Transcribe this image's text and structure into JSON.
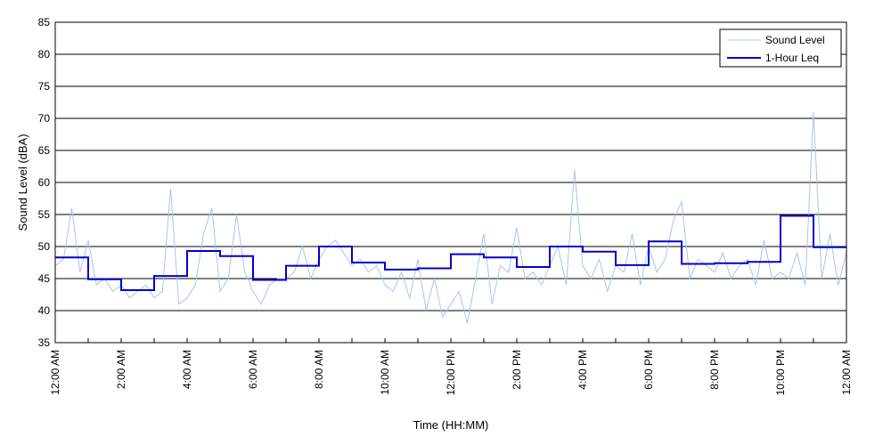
{
  "chart_data": {
    "type": "line",
    "title": "",
    "xlabel": "Time (HH:MM)",
    "ylabel": "Sound Level (dBA)",
    "xlim": [
      0,
      24
    ],
    "ylim": [
      35,
      85
    ],
    "y_ticks": [
      35,
      40,
      45,
      50,
      55,
      60,
      65,
      70,
      75,
      80,
      85
    ],
    "x_ticks": [
      0,
      2,
      4,
      6,
      8,
      10,
      12,
      14,
      16,
      18,
      20,
      22,
      24
    ],
    "x_tick_labels": [
      "12:00 AM",
      "2:00 AM",
      "4:00 AM",
      "6:00 AM",
      "8:00 AM",
      "10:00 AM",
      "12:00 PM",
      "2:00 PM",
      "4:00 PM",
      "6:00 PM",
      "8:00 PM",
      "10:00 PM",
      "12:00 AM"
    ],
    "grid": "horizontal",
    "legend_position": "top-right",
    "series": [
      {
        "name": "Sound Level",
        "color": "#a8c4f2",
        "style": "thin line",
        "x": [
          0.0,
          0.25,
          0.5,
          0.75,
          1.0,
          1.25,
          1.5,
          1.75,
          2.0,
          2.25,
          2.5,
          2.75,
          3.0,
          3.25,
          3.5,
          3.75,
          4.0,
          4.25,
          4.5,
          4.75,
          5.0,
          5.25,
          5.5,
          5.75,
          6.0,
          6.25,
          6.5,
          6.75,
          7.0,
          7.25,
          7.5,
          7.75,
          8.0,
          8.25,
          8.5,
          8.75,
          9.0,
          9.25,
          9.5,
          9.75,
          10.0,
          10.25,
          10.5,
          10.75,
          11.0,
          11.25,
          11.5,
          11.75,
          12.0,
          12.25,
          12.5,
          12.75,
          13.0,
          13.25,
          13.5,
          13.75,
          14.0,
          14.25,
          14.5,
          14.75,
          15.0,
          15.25,
          15.5,
          15.75,
          16.0,
          16.25,
          16.5,
          16.75,
          17.0,
          17.25,
          17.5,
          17.75,
          18.0,
          18.25,
          18.5,
          18.75,
          19.0,
          19.25,
          19.5,
          19.75,
          20.0,
          20.25,
          20.5,
          20.75,
          21.0,
          21.25,
          21.5,
          21.75,
          22.0,
          22.25,
          22.5,
          22.75,
          23.0,
          23.25,
          23.5,
          23.75,
          24.0
        ],
        "values": [
          47,
          48,
          56,
          46,
          51,
          44,
          45,
          43,
          44,
          42,
          43,
          44,
          42,
          43,
          59,
          41,
          42,
          44,
          52,
          56,
          43,
          45,
          55,
          46,
          43,
          41,
          44,
          45,
          45,
          46,
          50,
          45,
          48,
          50,
          51,
          49,
          47,
          48,
          46,
          47,
          44,
          43,
          46,
          42,
          48,
          40,
          45,
          39,
          41,
          43,
          38,
          45,
          52,
          41,
          47,
          46,
          53,
          45,
          46,
          44,
          47,
          50,
          44,
          62,
          47,
          45,
          48,
          43,
          47,
          46,
          52,
          44,
          50,
          46,
          48,
          54,
          57,
          45,
          48,
          47,
          46,
          49,
          45,
          47,
          48,
          44,
          51,
          45,
          46,
          45,
          49,
          44,
          71,
          45,
          52,
          44,
          49
        ]
      },
      {
        "name": "1-Hour Leq",
        "color": "#0000cc",
        "style": "step",
        "hourly_values": [
          48.3,
          44.9,
          43.2,
          45.4,
          49.3,
          48.5,
          44.8,
          47.0,
          50.0,
          47.5,
          46.4,
          46.6,
          48.8,
          48.3,
          46.8,
          50.0,
          49.2,
          47.1,
          50.8,
          47.3,
          47.4,
          47.6,
          54.8,
          49.9
        ]
      }
    ]
  }
}
